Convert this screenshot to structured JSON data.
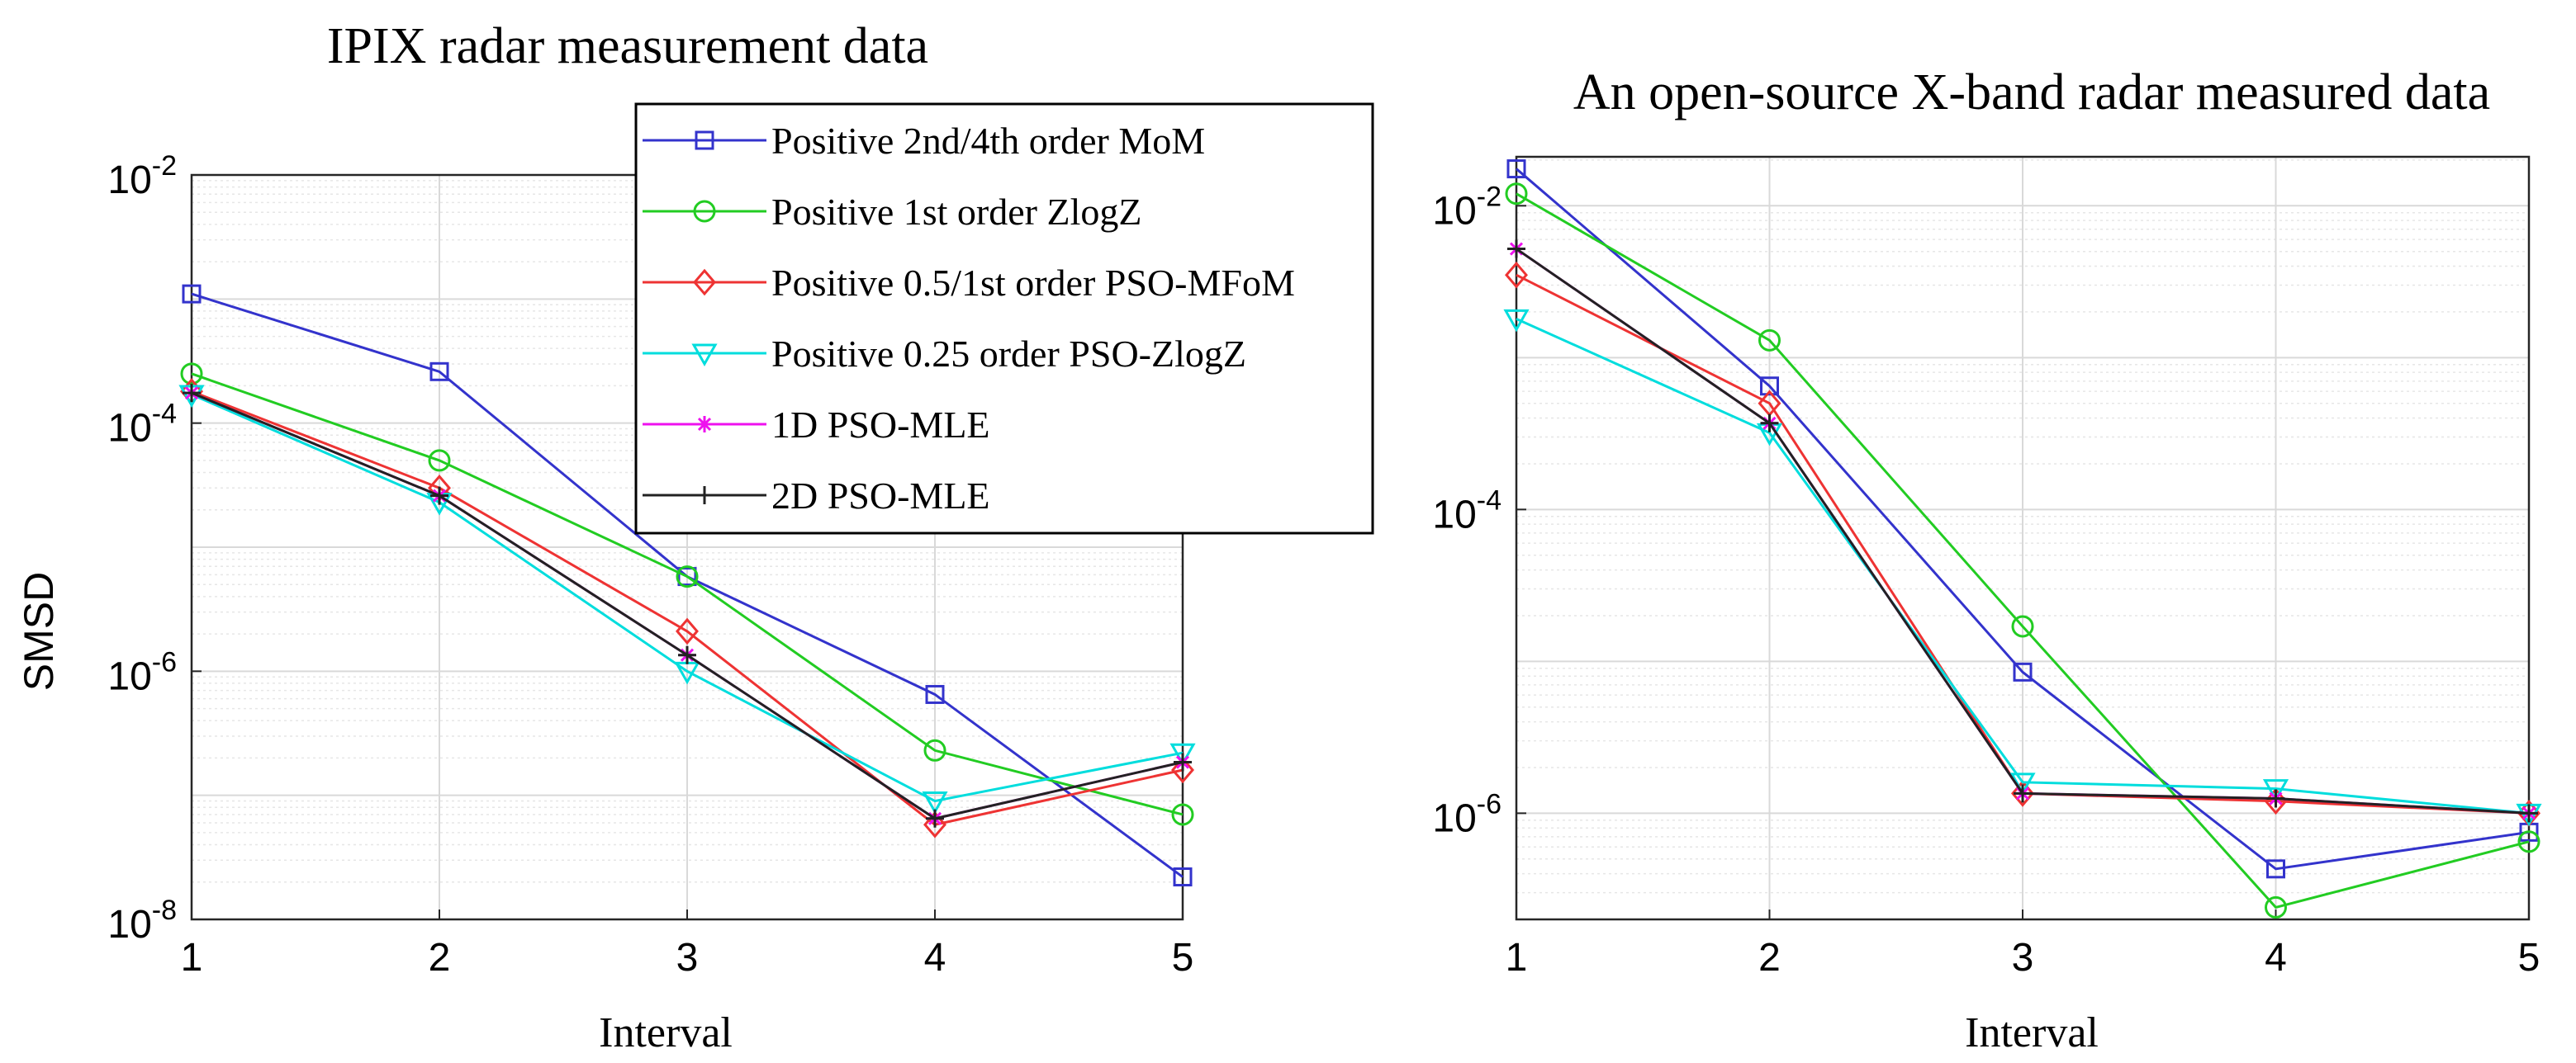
{
  "chart_data": [
    {
      "type": "line",
      "title": "IPIX radar measurement data",
      "xlabel": "Interval",
      "ylabel": "SMSD",
      "yscale": "log",
      "grid": true,
      "legend_position": "top-right",
      "x": [
        1,
        2,
        3,
        4,
        5
      ],
      "xlim": [
        1,
        5
      ],
      "ylim": [
        1e-08,
        0.01
      ],
      "xticks": [
        "1",
        "2",
        "3",
        "4",
        "5"
      ],
      "yticks": [
        {
          "value": 1e-08,
          "base": "10",
          "exp": "-8"
        },
        {
          "value": 1e-06,
          "base": "10",
          "exp": "-6"
        },
        {
          "value": 0.0001,
          "base": "10",
          "exp": "-4"
        },
        {
          "value": 0.01,
          "base": "10",
          "exp": "-2"
        }
      ],
      "series": [
        {
          "name": "Positive 2nd/4th order MoM",
          "color": "#3333cc",
          "marker": "square",
          "values": [
            0.0011,
            0.00026,
            5.8e-06,
            6.5e-07,
            2.2e-08
          ]
        },
        {
          "name": "Positive 1st order ZlogZ",
          "color": "#22cc22",
          "marker": "circle",
          "values": [
            0.00025,
            5e-05,
            5.8e-06,
            2.3e-07,
            7e-08
          ]
        },
        {
          "name": "Positive 0.5/1st order PSO-MFoM",
          "color": "#ee3333",
          "marker": "diamond",
          "values": [
            0.00018,
            3e-05,
            2.1e-06,
            5.8e-08,
            1.6e-07
          ]
        },
        {
          "name": "Positive 0.25 order PSO-ZlogZ",
          "color": "#00dddd",
          "marker": "triangle-down",
          "values": [
            0.00017,
            2.3e-05,
            1e-06,
            9e-08,
            2.2e-07
          ]
        },
        {
          "name": "1D PSO-MLE",
          "color": "#ee11ee",
          "marker": "asterisk",
          "values": [
            0.000175,
            2.6e-05,
            1.35e-06,
            6.5e-08,
            1.85e-07
          ]
        },
        {
          "name": "2D PSO-MLE",
          "color": "#222222",
          "marker": "plus",
          "values": [
            0.000175,
            2.6e-05,
            1.35e-06,
            6.5e-08,
            1.85e-07
          ]
        }
      ]
    },
    {
      "type": "line",
      "title": "An open-source X-band radar measured data",
      "xlabel": "Interval",
      "ylabel": "",
      "yscale": "log",
      "grid": true,
      "x": [
        1,
        2,
        3,
        4,
        5
      ],
      "xlim": [
        1,
        5
      ],
      "ylim": [
        2e-07,
        0.021
      ],
      "xticks": [
        "1",
        "2",
        "3",
        "4",
        "5"
      ],
      "yticks": [
        {
          "value": 1e-06,
          "base": "10",
          "exp": "-6"
        },
        {
          "value": 0.0001,
          "base": "10",
          "exp": "-4"
        },
        {
          "value": 0.01,
          "base": "10",
          "exp": "-2"
        }
      ],
      "series": [
        {
          "name": "Positive 2nd/4th order MoM",
          "color": "#3333cc",
          "marker": "square",
          "values": [
            0.0175,
            0.00065,
            8.5e-06,
            4.3e-07,
            7.5e-07
          ]
        },
        {
          "name": "Positive 1st order ZlogZ",
          "color": "#22cc22",
          "marker": "circle",
          "values": [
            0.012,
            0.0013,
            1.7e-05,
            2.4e-07,
            6.5e-07
          ]
        },
        {
          "name": "Positive 0.5/1st order PSO-MFoM",
          "color": "#ee3333",
          "marker": "diamond",
          "values": [
            0.0035,
            0.0005,
            1.35e-06,
            1.2e-06,
            1e-06
          ]
        },
        {
          "name": "Positive 0.25 order PSO-ZlogZ",
          "color": "#00dddd",
          "marker": "triangle-down",
          "values": [
            0.0018,
            0.00032,
            1.6e-06,
            1.45e-06,
            1e-06
          ]
        },
        {
          "name": "1D PSO-MLE",
          "color": "#ee11ee",
          "marker": "asterisk",
          "values": [
            0.0052,
            0.00037,
            1.35e-06,
            1.25e-06,
            1e-06
          ]
        },
        {
          "name": "2D PSO-MLE",
          "color": "#222222",
          "marker": "plus",
          "values": [
            0.0052,
            0.00037,
            1.35e-06,
            1.25e-06,
            1e-06
          ]
        }
      ]
    }
  ]
}
